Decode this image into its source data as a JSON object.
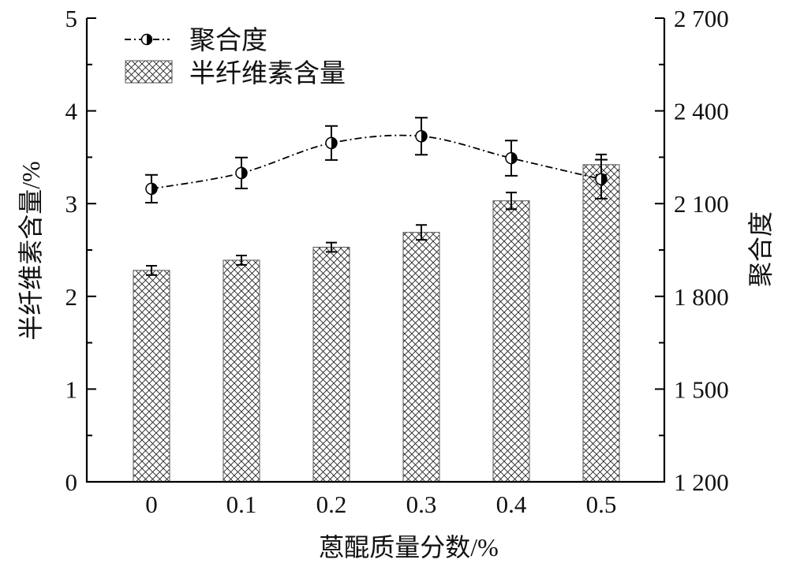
{
  "chart_data": {
    "type": "bar+line",
    "xlabel": "蒽醌质量分数/%",
    "ylabel_left": "半纤维素含量/%",
    "ylabel_right": "聚合度",
    "categories": [
      "0",
      "0.1",
      "0.2",
      "0.3",
      "0.4",
      "0.5"
    ],
    "ylim_left": [
      0,
      5
    ],
    "yticks_left": [
      "0",
      "1",
      "2",
      "3",
      "4",
      "5"
    ],
    "ylim_right": [
      1200,
      2700
    ],
    "yticks_right": [
      "1 200",
      "1 500",
      "1 800",
      "2 100",
      "2 400",
      "2 700"
    ],
    "legend": {
      "placement": "top-left",
      "entries": [
        "聚合度",
        "半纤维素含量"
      ]
    },
    "series": [
      {
        "name": "半纤维素含量",
        "type": "bar",
        "axis": "left",
        "pattern": "crosshatch",
        "values": [
          2.28,
          2.39,
          2.53,
          2.69,
          3.03,
          3.42
        ],
        "errors": [
          0.05,
          0.05,
          0.05,
          0.08,
          0.09,
          0.11
        ]
      },
      {
        "name": "聚合度",
        "type": "line",
        "axis": "right",
        "marker": "half-filled-circle",
        "line_style": "dash-dot",
        "values": [
          2148,
          2199,
          2296,
          2318,
          2247,
          2179
        ],
        "errors": [
          45,
          50,
          55,
          60,
          57,
          63
        ]
      }
    ],
    "grid": false
  }
}
